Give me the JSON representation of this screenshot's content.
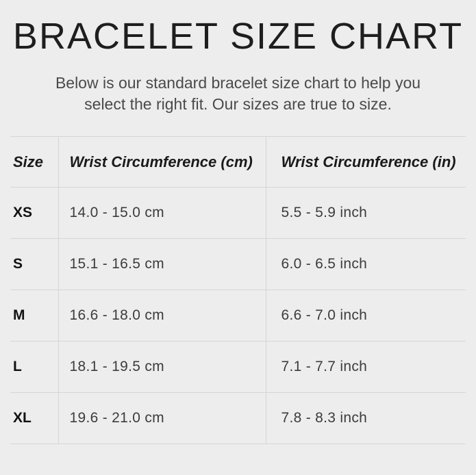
{
  "page": {
    "title": "BRACELET SIZE CHART",
    "subtitle_line1": "Below is our standard bracelet size chart to help you",
    "subtitle_line2": "select the right fit. Our sizes are true to size."
  },
  "table": {
    "headers": [
      "Size",
      "Wrist Circumference (cm)",
      "Wrist Circumference (in)"
    ],
    "rows": [
      {
        "size": "XS",
        "cm": "14.0 - 15.0 cm",
        "inch": "5.5 - 5.9 inch"
      },
      {
        "size": "S",
        "cm": "15.1 - 16.5 cm",
        "inch": "6.0 - 6.5 inch"
      },
      {
        "size": "M",
        "cm": "16.6 - 18.0 cm",
        "inch": "6.6 - 7.0 inch"
      },
      {
        "size": "L",
        "cm": "18.1 - 19.5 cm",
        "inch": "7.1 - 7.7 inch"
      },
      {
        "size": "XL",
        "cm": "19.6 - 21.0 cm",
        "inch": "7.8 - 8.3 inch"
      }
    ]
  },
  "chart_data": {
    "type": "table",
    "title": "BRACELET SIZE CHART",
    "subtitle": "Below is our standard bracelet size chart to help you select the right fit. Our sizes are true to size.",
    "columns": [
      "Size",
      "Wrist Circumference (cm)",
      "Wrist Circumference (in)"
    ],
    "rows": [
      [
        "XS",
        "14.0 - 15.0 cm",
        "5.5 - 5.9 inch"
      ],
      [
        "S",
        "15.1 - 16.5 cm",
        "6.0 - 6.5 inch"
      ],
      [
        "M",
        "16.6 - 18.0 cm",
        "6.6 - 7.0 inch"
      ],
      [
        "L",
        "18.1 - 19.5 cm",
        "7.1 - 7.7 inch"
      ],
      [
        "XL",
        "19.6 - 21.0 cm",
        "7.8 - 8.3 inch"
      ]
    ]
  },
  "colors": {
    "background": "#ededed",
    "grid_line": "#d6d6d6",
    "title_text": "#1e1e1e",
    "subtitle_text": "#4a4a4a",
    "value_text": "#3c3c3c"
  }
}
